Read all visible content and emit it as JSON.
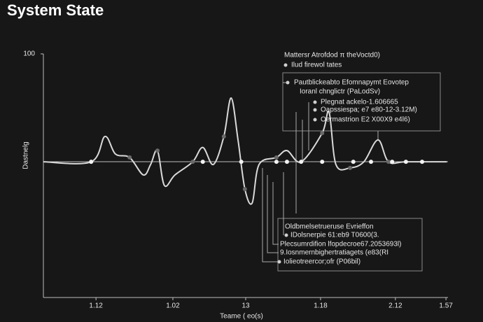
{
  "chart_data": {
    "type": "line",
    "title": "System State",
    "ylabel": "Dastnelg",
    "xlabel": "Teame ( eo(s)",
    "xlim": [
      0,
      100
    ],
    "ylim": [
      0,
      100
    ],
    "xticks": [
      {
        "value": 13,
        "label": "1.12"
      },
      {
        "value": 32,
        "label": "1.02"
      },
      {
        "value": 50,
        "label": "13"
      },
      {
        "value": 68.5,
        "label": "1.18"
      },
      {
        "value": 87,
        "label": "2.12"
      },
      {
        "value": 99.5,
        "label": "1.57"
      }
    ],
    "yticks": [
      100
    ],
    "line": {
      "color": "#d9d9d9",
      "x": [
        0,
        11.8,
        15.2,
        17.8,
        21.3,
        24.7,
        26.5,
        28.2,
        29.9,
        32.5,
        36.9,
        39.4,
        42.0,
        44.6,
        46.4,
        48.1,
        49.8,
        51.6,
        53.3,
        57.6,
        60.2,
        63.7,
        68.9,
        70.6,
        72.3,
        75.8,
        79.2,
        82.7,
        85.3,
        89.6,
        99.7
      ],
      "values": [
        55.7,
        55.7,
        66.1,
        58.9,
        57.5,
        50.3,
        54.6,
        60.3,
        46.0,
        50.3,
        55.7,
        61.6,
        54.6,
        66.1,
        81.9,
        64.7,
        44.5,
        38.8,
        54.6,
        57.5,
        60.3,
        55.7,
        67.5,
        76.1,
        54.6,
        53.2,
        55.7,
        64.7,
        55.7,
        55.7,
        55.7
      ]
    },
    "points": {
      "color": "#f2f2f2",
      "x": [
        11.8,
        39.4,
        48.9,
        57.6,
        60.2,
        63.7,
        68.9,
        76.6,
        80.97,
        86.2,
        89.6,
        93.6
      ],
      "values": [
        55.7,
        55.7,
        55.7,
        55.7,
        55.7,
        55.7,
        55.7,
        55.7,
        55.7,
        55.7,
        55.7,
        55.7
      ]
    },
    "annotations": [
      "Mattersr Atrofdod π theVoctd0)",
      "Ilud firewol tates",
      "Pautblickeabto Efomnapymt Eovotep",
      "Ioranl chnglictr (PaLodSv)",
      "Plegnat ackelo-1.606665",
      "Oapssiespa; e7 e80-12-3.12M)",
      "Oermastrion E2 X00X9 e4l6)",
      "Oldbmelsetrueruse Evrieffon",
      "IDolsnerpie 61:eb9 T0600(3.",
      "Plecsumrdifion lfopdecroe67.2053693l)",
      "9.Iosnmernbighertratiagets (e83(RI",
      "Iolieotreercor;ofr (P06bil)"
    ]
  }
}
